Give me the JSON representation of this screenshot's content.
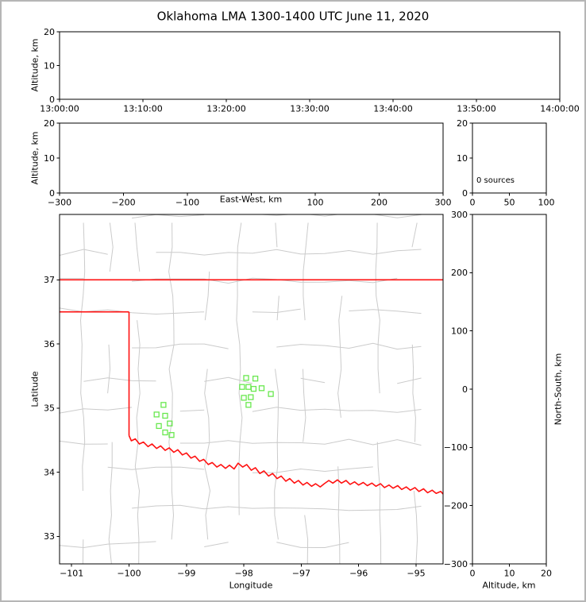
{
  "figure": {
    "title": "Oklahoma LMA 1300-1400 UTC June 11, 2020",
    "border_color": "#b6b6b6",
    "background": "#ffffff"
  },
  "chart_data": [
    {
      "id": "time_height",
      "name": "time-height-panel",
      "type": "scatter",
      "xlabel": "",
      "ylabel": "Altitude, km",
      "xlim": [
        0,
        6
      ],
      "ylim": [
        0,
        20
      ],
      "xticks": [
        {
          "v": 0,
          "label": "13:00:00"
        },
        {
          "v": 1,
          "label": "13:10:00"
        },
        {
          "v": 2,
          "label": "13:20:00"
        },
        {
          "v": 3,
          "label": "13:30:00"
        },
        {
          "v": 4,
          "label": "13:40:00"
        },
        {
          "v": 5,
          "label": "13:50:00"
        },
        {
          "v": 6,
          "label": "14:00:00"
        }
      ],
      "yticks": [
        {
          "v": 0,
          "label": "0"
        },
        {
          "v": 10,
          "label": "10"
        },
        {
          "v": 20,
          "label": "20"
        }
      ],
      "points": []
    },
    {
      "id": "ew_height",
      "name": "east-west-height-panel",
      "type": "scatter",
      "xlabel": "East-West, km",
      "ylabel": "Altitude, km",
      "xlim": [
        -300,
        300
      ],
      "ylim": [
        0,
        20
      ],
      "xticks": [
        {
          "v": -300,
          "label": "−300"
        },
        {
          "v": -200,
          "label": "−200"
        },
        {
          "v": -100,
          "label": "−100"
        },
        {
          "v": 0,
          "label": ""
        },
        {
          "v": 100,
          "label": "100"
        },
        {
          "v": 200,
          "label": "200"
        },
        {
          "v": 300,
          "label": "300"
        }
      ],
      "yticks": [
        {
          "v": 0,
          "label": "0"
        },
        {
          "v": 10,
          "label": "10"
        },
        {
          "v": 20,
          "label": "20"
        }
      ],
      "points": []
    },
    {
      "id": "height_histogram",
      "name": "altitude-histogram-panel",
      "type": "line",
      "annotation": "0 sources",
      "xlabel": "",
      "ylabel": "",
      "xlim": [
        0,
        100
      ],
      "ylim": [
        0,
        20
      ],
      "xticks": [
        {
          "v": 0,
          "label": "0"
        },
        {
          "v": 50,
          "label": "50"
        },
        {
          "v": 100,
          "label": "100"
        }
      ],
      "yticks": [
        {
          "v": 0,
          "label": "0"
        },
        {
          "v": 10,
          "label": "10"
        },
        {
          "v": 20,
          "label": "20"
        }
      ],
      "points": []
    },
    {
      "id": "plan_view",
      "name": "plan-view-map-panel",
      "type": "scatter",
      "xlabel": "Longitude",
      "ylabel": "Latitude",
      "xlim": [
        -101.21,
        -94.53
      ],
      "ylim": [
        32.57,
        38.02
      ],
      "xticks": [
        {
          "v": -101,
          "label": "−101"
        },
        {
          "v": -100,
          "label": "−100"
        },
        {
          "v": -99,
          "label": "−99"
        },
        {
          "v": -98,
          "label": "−98"
        },
        {
          "v": -97,
          "label": "−97"
        },
        {
          "v": -96,
          "label": "−96"
        },
        {
          "v": -95,
          "label": "−95"
        }
      ],
      "yticks": [
        {
          "v": 33,
          "label": "33"
        },
        {
          "v": 34,
          "label": "34"
        },
        {
          "v": 35,
          "label": "35"
        },
        {
          "v": 36,
          "label": "36"
        },
        {
          "v": 37,
          "label": "37"
        }
      ],
      "marker": {
        "shape": "open-square",
        "color": "#69e84f",
        "size": 6
      },
      "counties": {
        "color": "#cbcbcb",
        "lon_spacing": 0.58,
        "lat_spacing": 0.5,
        "jitter": 0.05,
        "seed": 11
      },
      "boundary": {
        "color": "#ff1111",
        "segments": [
          {
            "name": "kansas",
            "points": [
              [
                -101.21,
                37
              ],
              [
                -94.53,
                37
              ]
            ]
          },
          {
            "name": "panhandle-south",
            "points": [
              [
                -101.21,
                36.5
              ],
              [
                -100,
                36.5
              ]
            ]
          },
          {
            "name": "texas-west",
            "points": [
              [
                -100,
                36.5
              ],
              [
                -100,
                34.57
              ]
            ]
          },
          {
            "name": "red-river",
            "points": [
              [
                -100.0,
                34.57
              ],
              [
                -99.96,
                34.49
              ],
              [
                -99.89,
                34.52
              ],
              [
                -99.82,
                34.44
              ],
              [
                -99.75,
                34.47
              ],
              [
                -99.67,
                34.4
              ],
              [
                -99.6,
                34.44
              ],
              [
                -99.52,
                34.37
              ],
              [
                -99.45,
                34.41
              ],
              [
                -99.37,
                34.34
              ],
              [
                -99.3,
                34.38
              ],
              [
                -99.22,
                34.31
              ],
              [
                -99.15,
                34.35
              ],
              [
                -99.07,
                34.27
              ],
              [
                -99.0,
                34.3
              ],
              [
                -98.92,
                34.22
              ],
              [
                -98.85,
                34.25
              ],
              [
                -98.77,
                34.17
              ],
              [
                -98.7,
                34.2
              ],
              [
                -98.62,
                34.12
              ],
              [
                -98.55,
                34.15
              ],
              [
                -98.47,
                34.08
              ],
              [
                -98.4,
                34.12
              ],
              [
                -98.32,
                34.06
              ],
              [
                -98.25,
                34.11
              ],
              [
                -98.17,
                34.05
              ],
              [
                -98.1,
                34.14
              ],
              [
                -98.02,
                34.08
              ],
              [
                -97.95,
                34.12
              ],
              [
                -97.87,
                34.03
              ],
              [
                -97.8,
                34.07
              ],
              [
                -97.72,
                33.98
              ],
              [
                -97.65,
                34.02
              ],
              [
                -97.57,
                33.94
              ],
              [
                -97.5,
                33.98
              ],
              [
                -97.42,
                33.9
              ],
              [
                -97.35,
                33.94
              ],
              [
                -97.27,
                33.86
              ],
              [
                -97.2,
                33.9
              ],
              [
                -97.12,
                33.83
              ],
              [
                -97.05,
                33.87
              ],
              [
                -96.97,
                33.8
              ],
              [
                -96.9,
                33.84
              ],
              [
                -96.82,
                33.78
              ],
              [
                -96.75,
                33.82
              ],
              [
                -96.67,
                33.77
              ],
              [
                -96.6,
                33.82
              ],
              [
                -96.52,
                33.87
              ],
              [
                -96.45,
                33.83
              ],
              [
                -96.37,
                33.88
              ],
              [
                -96.3,
                33.83
              ],
              [
                -96.22,
                33.87
              ],
              [
                -96.15,
                33.81
              ],
              [
                -96.07,
                33.85
              ],
              [
                -96.0,
                33.8
              ],
              [
                -95.92,
                33.84
              ],
              [
                -95.85,
                33.79
              ],
              [
                -95.77,
                33.83
              ],
              [
                -95.7,
                33.78
              ],
              [
                -95.62,
                33.82
              ],
              [
                -95.55,
                33.76
              ],
              [
                -95.47,
                33.8
              ],
              [
                -95.4,
                33.75
              ],
              [
                -95.32,
                33.79
              ],
              [
                -95.25,
                33.73
              ],
              [
                -95.17,
                33.77
              ],
              [
                -95.1,
                33.72
              ],
              [
                -95.02,
                33.76
              ],
              [
                -94.95,
                33.7
              ],
              [
                -94.87,
                33.74
              ],
              [
                -94.8,
                33.68
              ],
              [
                -94.72,
                33.72
              ],
              [
                -94.65,
                33.67
              ],
              [
                -94.57,
                33.7
              ],
              [
                -94.52,
                33.65
              ]
            ]
          }
        ]
      },
      "points": [
        [
          -97.96,
          35.47
        ],
        [
          -97.8,
          35.46
        ],
        [
          -98.03,
          35.33
        ],
        [
          -97.92,
          35.33
        ],
        [
          -97.83,
          35.3
        ],
        [
          -97.69,
          35.31
        ],
        [
          -98.0,
          35.16
        ],
        [
          -97.88,
          35.17
        ],
        [
          -97.92,
          35.05
        ],
        [
          -97.53,
          35.22
        ],
        [
          -99.4,
          35.05
        ],
        [
          -99.52,
          34.9
        ],
        [
          -99.37,
          34.88
        ],
        [
          -99.29,
          34.76
        ],
        [
          -99.48,
          34.72
        ],
        [
          -99.37,
          34.62
        ],
        [
          -99.26,
          34.58
        ]
      ]
    },
    {
      "id": "ns_height",
      "name": "north-south-height-panel",
      "type": "scatter",
      "xlabel": "Altitude, km",
      "ylabel": "North-South, km",
      "xlim": [
        0,
        20
      ],
      "ylim": [
        -300,
        300
      ],
      "xticks": [
        {
          "v": 0,
          "label": "0"
        },
        {
          "v": 10,
          "label": "10"
        },
        {
          "v": 20,
          "label": "20"
        }
      ],
      "yticks": [
        {
          "v": -300,
          "label": "−300"
        },
        {
          "v": -200,
          "label": "−200"
        },
        {
          "v": -100,
          "label": "−100"
        },
        {
          "v": 0,
          "label": "0"
        },
        {
          "v": 100,
          "label": "100"
        },
        {
          "v": 200,
          "label": "200"
        },
        {
          "v": 300,
          "label": "300"
        }
      ],
      "points": []
    }
  ]
}
